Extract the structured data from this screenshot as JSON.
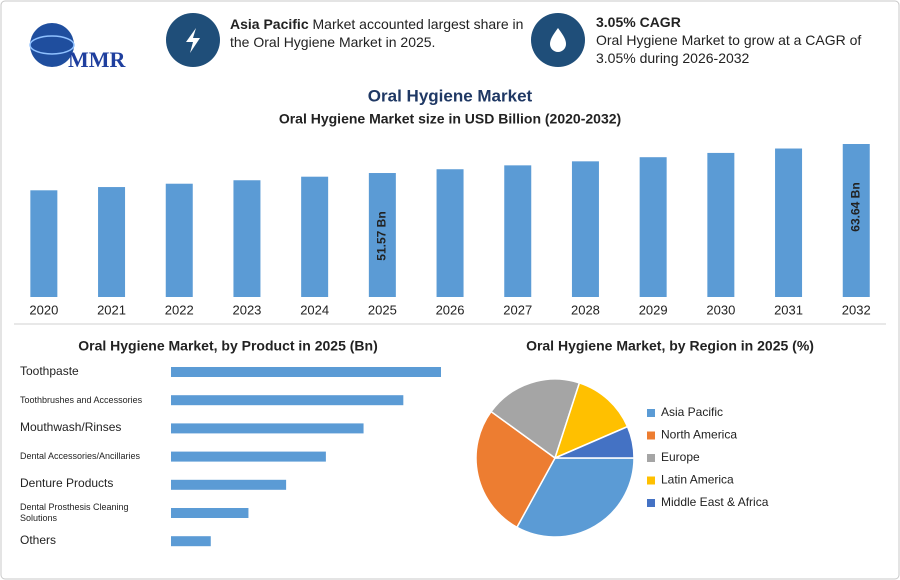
{
  "header": {
    "logo": "MMR",
    "stats": [
      {
        "highlight": "Asia Pacific",
        "text": "Market accounted largest share in the Oral Hygiene Market in 2025."
      },
      {
        "highlight": "3.05% CAGR",
        "text": "Oral Hygiene Market to grow at a CAGR of 3.05% during 2026-2032"
      }
    ]
  },
  "title": "Oral Hygiene Market",
  "chart_data": [
    {
      "type": "bar",
      "title": "Oral Hygiene Market size in USD Billion (2020-2032)",
      "categories": [
        "2020",
        "2021",
        "2022",
        "2023",
        "2024",
        "2025",
        "2026",
        "2027",
        "2028",
        "2029",
        "2030",
        "2031",
        "2032"
      ],
      "values": [
        44.38,
        45.73,
        47.12,
        48.56,
        50.04,
        51.57,
        53.14,
        54.76,
        56.43,
        58.15,
        59.93,
        61.76,
        63.64
      ],
      "value_labels": [
        null,
        null,
        null,
        null,
        null,
        "51.57 Bn",
        null,
        null,
        null,
        null,
        null,
        null,
        "63.64 Bn"
      ],
      "color": "#5b9bd5"
    },
    {
      "type": "hbar",
      "title": "Oral Hygiene Market, by Product in 2025 (Bn)",
      "categories": [
        "Toothpaste",
        "Toothbrushes and Accessories",
        "Mouthwash/Rinses",
        "Dental Accessories/Ancillaries",
        "Denture Products",
        "Dental Prosthesis Cleaning Solutions",
        "Others"
      ],
      "values": [
        12.9,
        11.1,
        9.2,
        7.4,
        5.5,
        3.7,
        1.9
      ],
      "color": "#5b9bd5"
    },
    {
      "type": "pie",
      "title": "Oral Hygiene Market, by Region in 2025 (%)",
      "categories": [
        "Asia Pacific",
        "North America",
        "Europe",
        "Latin America",
        "Middle East & Africa"
      ],
      "values": [
        33,
        27,
        20,
        13.5,
        6.5
      ],
      "colors": [
        "#5b9bd5",
        "#ed7d31",
        "#a5a5a5",
        "#ffc000",
        "#4472c4"
      ],
      "legend": "right"
    }
  ]
}
